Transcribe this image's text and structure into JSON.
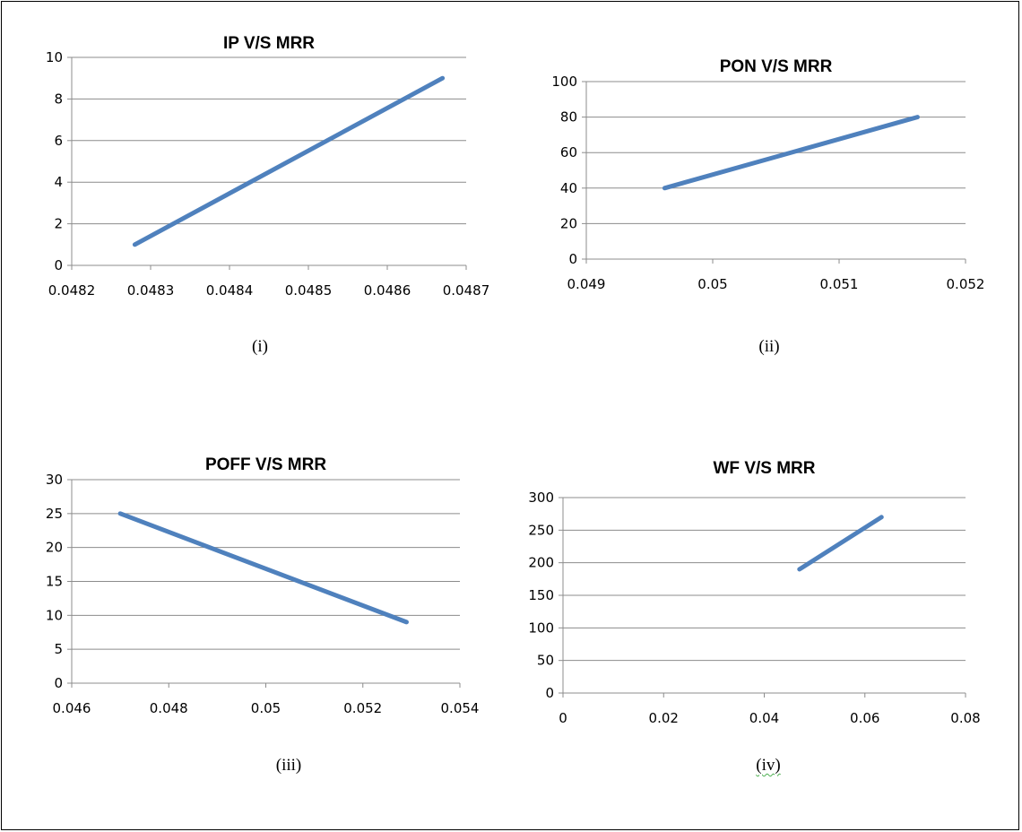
{
  "chart_data": [
    {
      "type": "line",
      "title": "IP V/S MRR",
      "x": [
        0.04828,
        0.04867
      ],
      "series": [
        {
          "values": [
            1,
            9
          ]
        }
      ],
      "xlim": [
        0.0482,
        0.0487
      ],
      "ylim": [
        0,
        10
      ],
      "xticks": [
        "0.0482",
        "0.0483",
        "0.0484",
        "0.0485",
        "0.0486",
        "0.0487"
      ],
      "yticks": [
        "0",
        "2",
        "4",
        "6",
        "8",
        "10"
      ],
      "grid": true,
      "color": "#4f81bd",
      "caption": "(i)"
    },
    {
      "type": "line",
      "title": "PON V/S MRR",
      "x": [
        0.04962,
        0.05162
      ],
      "series": [
        {
          "values": [
            40,
            80
          ]
        }
      ],
      "xlim": [
        0.049,
        0.052
      ],
      "ylim": [
        0,
        100
      ],
      "xticks": [
        "0.049",
        "0.05",
        "0.051",
        "0.052"
      ],
      "yticks": [
        "0",
        "20",
        "40",
        "60",
        "80",
        "100"
      ],
      "grid": true,
      "color": "#4f81bd",
      "caption": "(ii)"
    },
    {
      "type": "line",
      "title": "POFF V/S MRR",
      "x": [
        0.047,
        0.0529
      ],
      "series": [
        {
          "values": [
            25,
            9
          ]
        }
      ],
      "xlim": [
        0.046,
        0.054
      ],
      "ylim": [
        0,
        30
      ],
      "xticks": [
        "0.046",
        "0.048",
        "0.05",
        "0.052",
        "0.054"
      ],
      "yticks": [
        "0",
        "5",
        "10",
        "15",
        "20",
        "25",
        "30"
      ],
      "grid": true,
      "color": "#4f81bd",
      "caption": "(iii)"
    },
    {
      "type": "line",
      "title": "WF V/S MRR",
      "x": [
        0.047,
        0.0633
      ],
      "series": [
        {
          "values": [
            190,
            270
          ]
        }
      ],
      "xlim": [
        0,
        0.08
      ],
      "ylim": [
        0,
        300
      ],
      "xticks": [
        "0",
        "0.02",
        "0.04",
        "0.06",
        "0.08"
      ],
      "yticks": [
        "0",
        "50",
        "100",
        "150",
        "200",
        "250",
        "300"
      ],
      "grid": true,
      "color": "#4f81bd",
      "caption": "(iv)"
    }
  ]
}
